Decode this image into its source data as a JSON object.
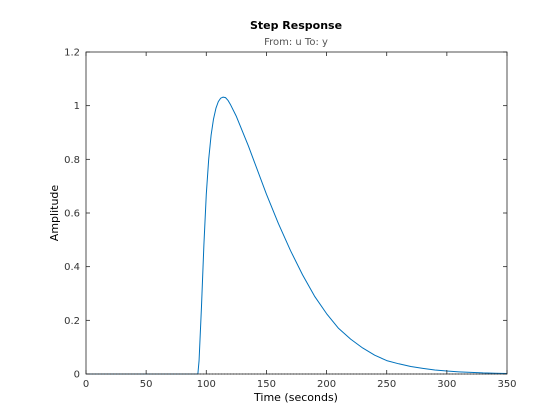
{
  "chart_data": {
    "type": "line",
    "title": "Step Response",
    "subtitle": "From: u  To: y",
    "xlabel": "Time (seconds)",
    "ylabel": "Amplitude",
    "xlim": [
      0,
      350
    ],
    "ylim": [
      0,
      1.2
    ],
    "xticks": [
      0,
      50,
      100,
      150,
      200,
      250,
      300,
      350
    ],
    "yticks": [
      0,
      0.2,
      0.4,
      0.6,
      0.8,
      1,
      1.2
    ],
    "xtick_labels": [
      "0",
      "50",
      "100",
      "150",
      "200",
      "250",
      "300",
      "350"
    ],
    "ytick_labels": [
      "0",
      "0.2",
      "0.4",
      "0.6",
      "0.8",
      "1",
      "1.2"
    ],
    "grid": false,
    "legend": "none",
    "reference_line": {
      "y": 0,
      "style": "dotted",
      "color": "#000000"
    },
    "series": [
      {
        "color": "#0072bd",
        "x": [
          0,
          50,
          93,
          94,
          96,
          98,
          100,
          102,
          104,
          106,
          108,
          110,
          112,
          114,
          116,
          118,
          120,
          125,
          130,
          135,
          140,
          150,
          160,
          170,
          180,
          190,
          200,
          210,
          220,
          230,
          240,
          250,
          260,
          270,
          280,
          290,
          300,
          310,
          320,
          330,
          340,
          350
        ],
        "y": [
          0,
          0,
          0,
          0.05,
          0.25,
          0.48,
          0.67,
          0.8,
          0.89,
          0.95,
          0.99,
          1.015,
          1.028,
          1.032,
          1.03,
          1.02,
          1.005,
          0.96,
          0.905,
          0.85,
          0.79,
          0.67,
          0.56,
          0.46,
          0.37,
          0.29,
          0.225,
          0.17,
          0.13,
          0.097,
          0.07,
          0.05,
          0.038,
          0.028,
          0.021,
          0.015,
          0.011,
          0.008,
          0.006,
          0.004,
          0.003,
          0.002
        ]
      }
    ]
  }
}
